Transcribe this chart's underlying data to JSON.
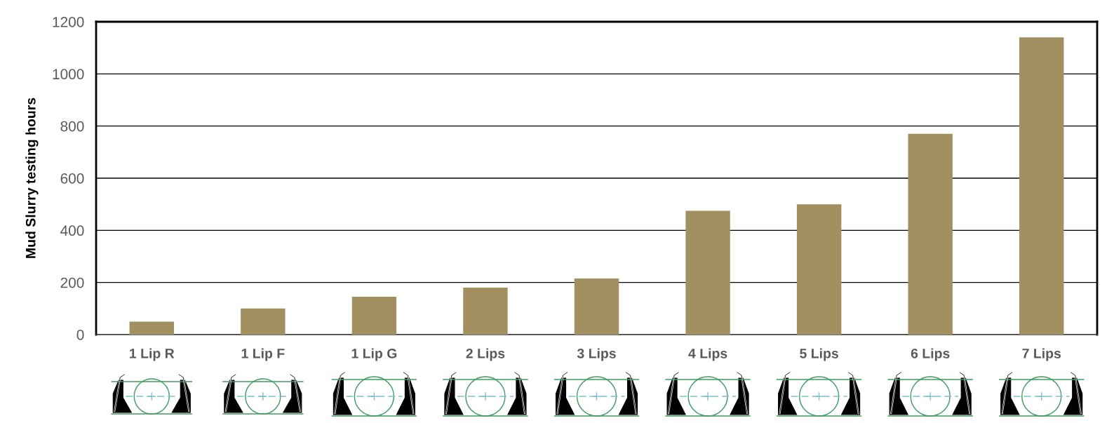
{
  "chart_data": {
    "type": "bar",
    "categories": [
      "1 Lip R",
      "1 Lip F",
      "1 Lip G",
      "2 Lips",
      "3 Lips",
      "4 Lips",
      "5 Lips",
      "6 Lips",
      "7 Lips"
    ],
    "values": [
      50,
      100,
      145,
      180,
      215,
      475,
      500,
      770,
      1140
    ],
    "color": "#a39060",
    "ylabel": "Mud Slurry testing hours",
    "ylim": [
      0,
      1200
    ],
    "yticks": [
      0,
      200,
      400,
      600,
      800,
      1000,
      1200
    ],
    "grid": "y",
    "legend": false
  }
}
